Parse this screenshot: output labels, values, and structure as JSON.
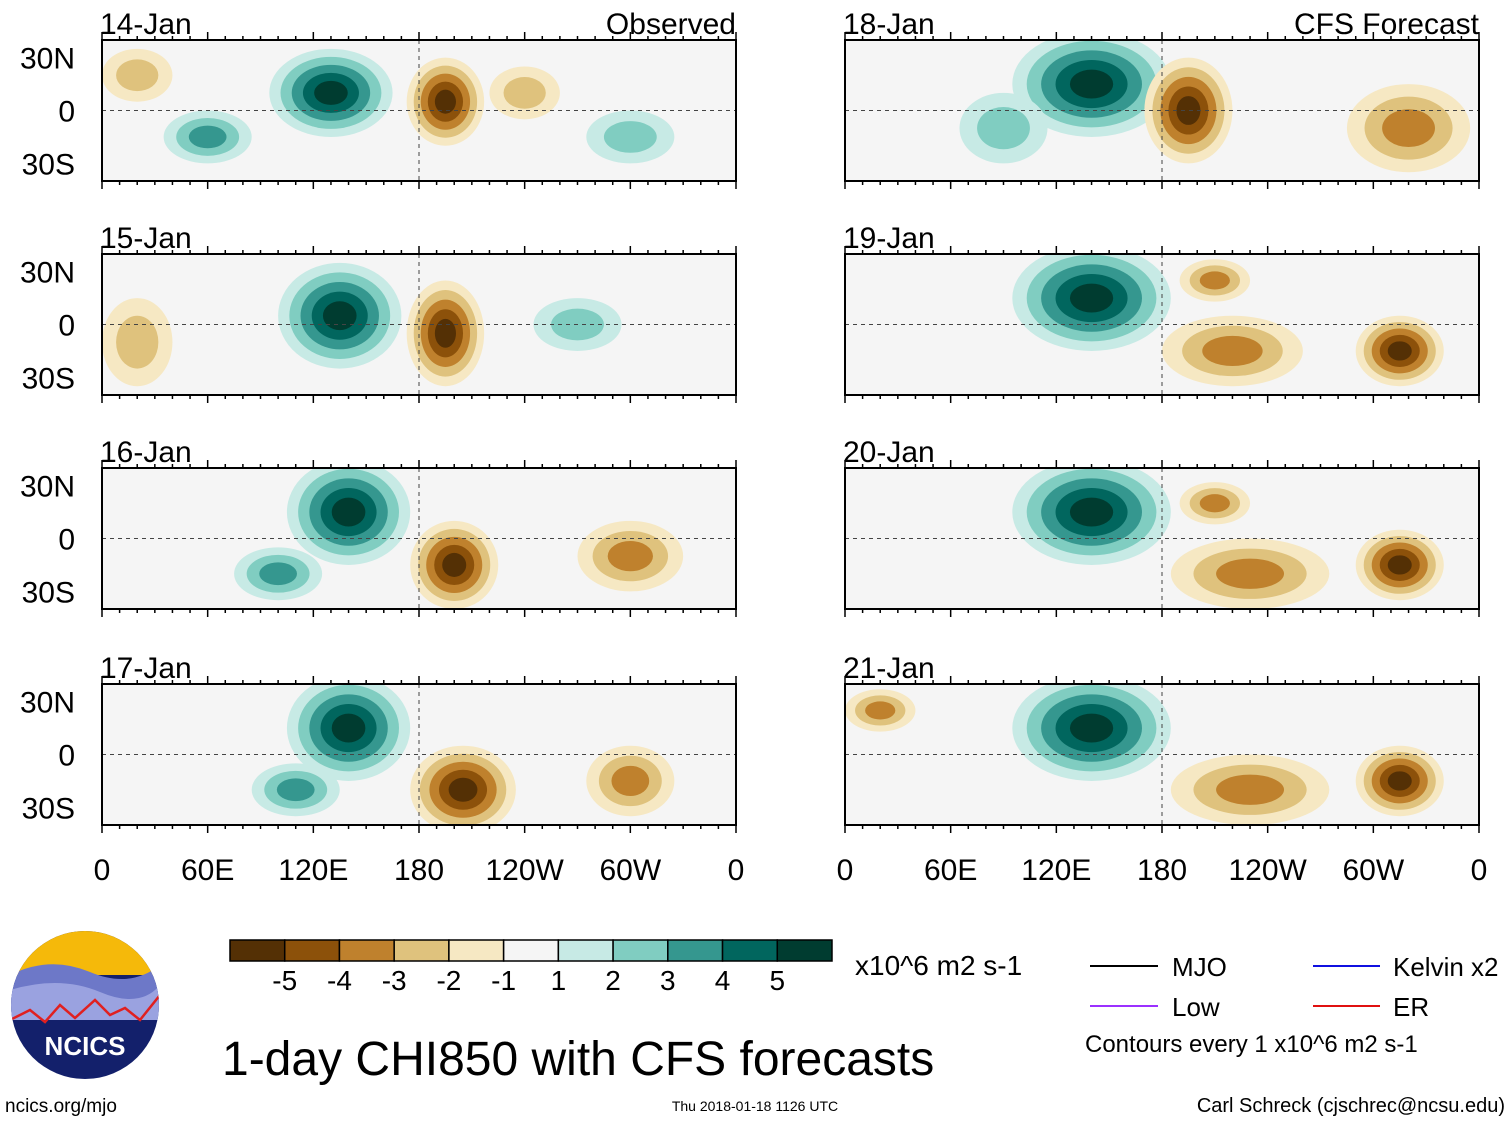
{
  "header": {
    "observed_label": "Observed",
    "forecast_label": "CFS Forecast"
  },
  "lat_labels": [
    "30N",
    "0",
    "30S"
  ],
  "lon_labels": [
    "0",
    "60E",
    "120E",
    "180",
    "120W",
    "60W",
    "0"
  ],
  "colorbar": {
    "colors": [
      "#543005",
      "#8c510a",
      "#bf812d",
      "#dfc27d",
      "#f6e8c3",
      "#f5f5f5",
      "#c7eae5",
      "#80cdc1",
      "#35978f",
      "#01665e",
      "#003c30"
    ],
    "labels": [
      "-5",
      "-4",
      "-3",
      "-2",
      "-1",
      "1",
      "2",
      "3",
      "4",
      "5"
    ],
    "units": "x10^6 m2 s-1"
  },
  "legend": {
    "mjo": "MJO",
    "mjo_color": "#000000",
    "low": "Low",
    "low_color": "#9b30ff",
    "kelvin": "Kelvin x2",
    "kelvin_color": "#1010e0",
    "er": "ER",
    "er_color": "#e01010",
    "contours_note": "Contours every 1 x10^6 m2 s-1"
  },
  "title": "1-day CHI850 with CFS forecasts",
  "footer": {
    "site": "ncics.org/mjo",
    "timestamp": "Thu 2018-01-18 1126 UTC",
    "credit": "Carl Schreck (cjschrec@ncsu.edu)"
  },
  "logo": {
    "text": "NCICS"
  },
  "panels": [
    {
      "date": "14-Jan",
      "type": "observed",
      "blobs": [
        [
          130,
          10,
          35,
          25,
          5
        ],
        [
          195,
          5,
          22,
          25,
          -5
        ],
        [
          300,
          -15,
          25,
          15,
          2
        ],
        [
          60,
          -15,
          25,
          15,
          3
        ],
        [
          20,
          20,
          20,
          15,
          -2
        ],
        [
          240,
          10,
          20,
          15,
          -2
        ]
      ]
    },
    {
      "date": "15-Jan",
      "type": "observed",
      "blobs": [
        [
          135,
          5,
          35,
          30,
          5
        ],
        [
          195,
          -5,
          22,
          30,
          -5
        ],
        [
          270,
          0,
          25,
          15,
          2
        ],
        [
          20,
          -10,
          20,
          25,
          -2
        ]
      ]
    },
    {
      "date": "16-Jan",
      "type": "observed",
      "blobs": [
        [
          140,
          15,
          35,
          30,
          5
        ],
        [
          200,
          -15,
          25,
          25,
          -5
        ],
        [
          300,
          -10,
          30,
          20,
          -3
        ],
        [
          100,
          -20,
          25,
          15,
          3
        ]
      ]
    },
    {
      "date": "17-Jan",
      "type": "observed",
      "blobs": [
        [
          140,
          15,
          35,
          30,
          5
        ],
        [
          205,
          -20,
          30,
          25,
          -5
        ],
        [
          300,
          -15,
          25,
          20,
          -3
        ],
        [
          110,
          -20,
          25,
          15,
          3
        ]
      ]
    },
    {
      "date": "18-Jan",
      "type": "forecast",
      "blobs": [
        [
          140,
          15,
          45,
          30,
          5
        ],
        [
          195,
          0,
          25,
          30,
          -5
        ],
        [
          320,
          -10,
          35,
          25,
          -3
        ],
        [
          90,
          -10,
          25,
          20,
          2
        ]
      ]
    },
    {
      "date": "19-Jan",
      "type": "forecast",
      "blobs": [
        [
          140,
          15,
          45,
          30,
          5
        ],
        [
          220,
          -15,
          40,
          20,
          -3
        ],
        [
          315,
          -15,
          25,
          20,
          -5
        ],
        [
          210,
          25,
          20,
          12,
          -3
        ]
      ]
    },
    {
      "date": "20-Jan",
      "type": "forecast",
      "blobs": [
        [
          140,
          15,
          45,
          30,
          5
        ],
        [
          230,
          -20,
          45,
          20,
          -3
        ],
        [
          315,
          -15,
          25,
          20,
          -5
        ],
        [
          210,
          20,
          20,
          12,
          -3
        ]
      ]
    },
    {
      "date": "21-Jan",
      "type": "forecast",
      "blobs": [
        [
          140,
          15,
          45,
          30,
          5
        ],
        [
          230,
          -20,
          45,
          20,
          -3
        ],
        [
          315,
          -15,
          25,
          20,
          -5
        ],
        [
          20,
          25,
          20,
          12,
          -3
        ]
      ]
    }
  ]
}
